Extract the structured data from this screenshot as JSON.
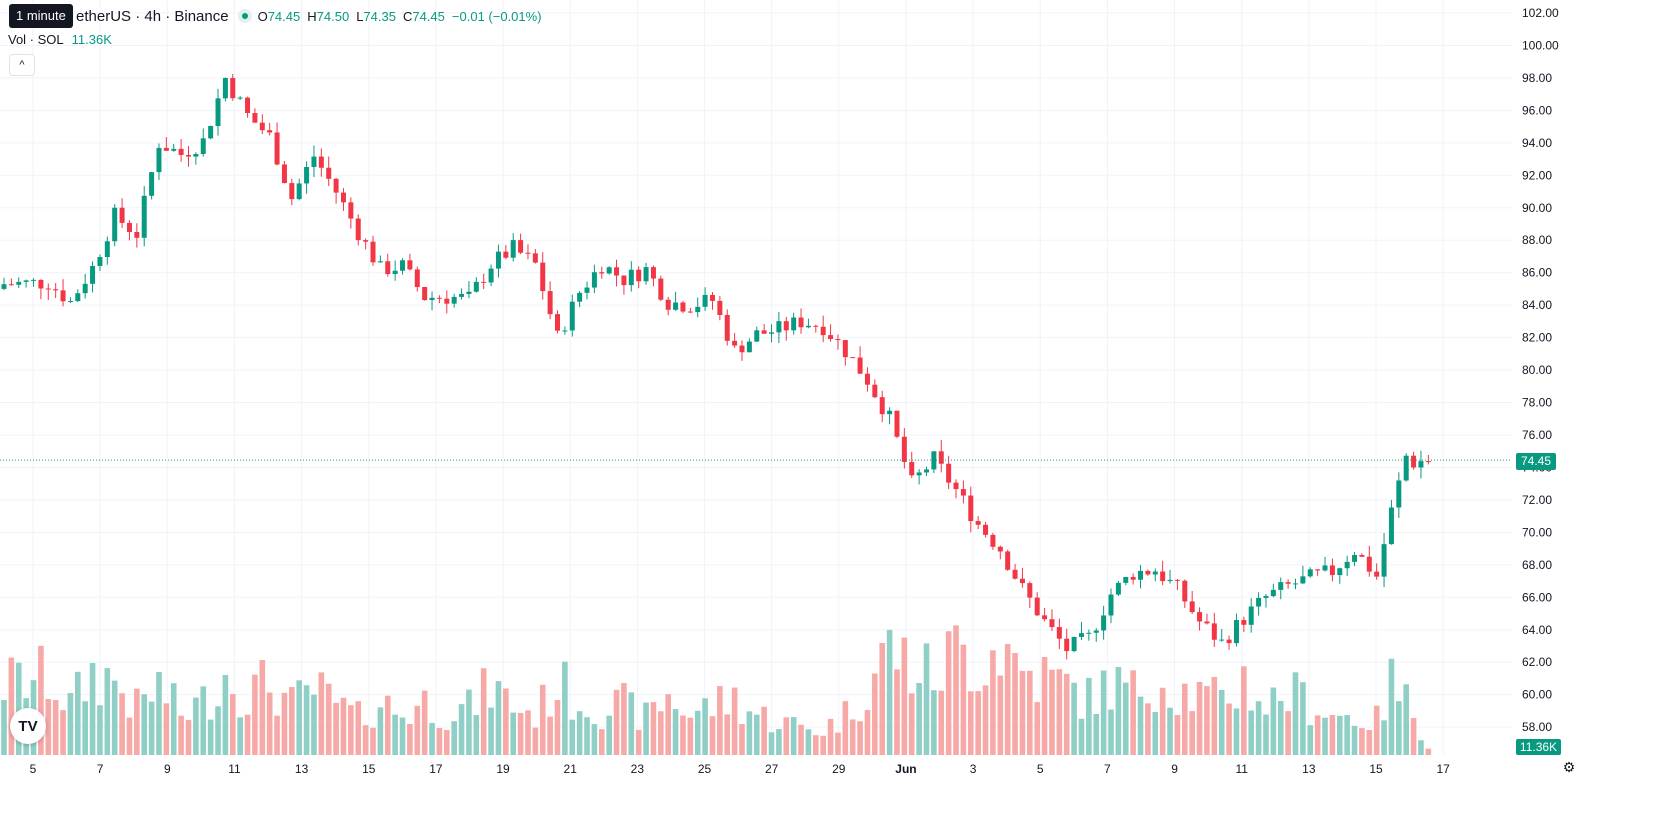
{
  "tooltip": "1 minute",
  "legend": {
    "symbol": "etherUS · 4h · Binance",
    "o_key": "O",
    "o_val": "74.45",
    "h_key": "H",
    "h_val": "74.50",
    "l_key": "L",
    "l_val": "74.35",
    "c_key": "C",
    "c_val": "74.45",
    "change": "−0.01 (−0.01%)"
  },
  "volume_legend": {
    "label": "Vol · SOL",
    "value": "11.36K"
  },
  "collapse_icon": "chevron-up-icon",
  "last_price": "74.45",
  "last_volume": "11.36K",
  "colors": {
    "up": "#089981",
    "down": "#f23645",
    "vol_up": "#8fcfc5",
    "vol_down": "#f7a9a7",
    "grid": "#f0f3fa",
    "axis_text": "#131722"
  },
  "logo_icon": "tradingview-logo-icon",
  "settings_icon": "gear-icon",
  "chart_data": {
    "type": "candlestick",
    "price_axis": [
      "102.00",
      "100.00",
      "98.00",
      "96.00",
      "94.00",
      "92.00",
      "90.00",
      "88.00",
      "86.00",
      "84.00",
      "82.00",
      "80.00",
      "78.00",
      "76.00",
      "74.00",
      "72.00",
      "70.00",
      "68.00",
      "66.00",
      "64.00",
      "62.00",
      "60.00",
      "58.00"
    ],
    "time_axis": [
      "5",
      "7",
      "9",
      "11",
      "13",
      "15",
      "17",
      "19",
      "21",
      "23",
      "25",
      "27",
      "29",
      "Jun",
      "3",
      "5",
      "7",
      "9",
      "11",
      "13",
      "15",
      "17"
    ],
    "ylim": [
      56.9,
      102.8
    ],
    "grid": true,
    "close_path": [
      [
        0,
        85.3
      ],
      [
        6,
        85.4
      ],
      [
        9,
        84.2
      ],
      [
        12,
        86.3
      ],
      [
        15,
        89.5
      ],
      [
        18,
        88.4
      ],
      [
        21,
        94.0
      ],
      [
        24,
        93.3
      ],
      [
        27,
        94.1
      ],
      [
        30,
        98.0
      ],
      [
        33,
        95.7
      ],
      [
        36,
        94.4
      ],
      [
        39,
        90.6
      ],
      [
        42,
        93.2
      ],
      [
        45,
        91.0
      ],
      [
        48,
        88.5
      ],
      [
        51,
        86.2
      ],
      [
        54,
        86.4
      ],
      [
        57,
        84.5
      ],
      [
        60,
        84.5
      ],
      [
        63,
        84.4
      ],
      [
        66,
        86.5
      ],
      [
        69,
        87.5
      ],
      [
        72,
        86.5
      ],
      [
        75,
        82.0
      ],
      [
        78,
        84.8
      ],
      [
        81,
        86.5
      ],
      [
        84,
        85.6
      ],
      [
        87,
        86.2
      ],
      [
        90,
        84.2
      ],
      [
        93,
        84.0
      ],
      [
        96,
        84.3
      ],
      [
        99,
        81.2
      ],
      [
        102,
        82.2
      ],
      [
        105,
        82.5
      ],
      [
        108,
        83.0
      ],
      [
        111,
        82.7
      ],
      [
        114,
        81.2
      ],
      [
        117,
        79.4
      ],
      [
        120,
        77.0
      ],
      [
        123,
        73.0
      ],
      [
        126,
        74.5
      ],
      [
        129,
        72.6
      ],
      [
        132,
        70.5
      ],
      [
        135,
        69.0
      ],
      [
        138,
        66.5
      ],
      [
        141,
        64.5
      ],
      [
        144,
        62.8
      ],
      [
        147,
        63.5
      ],
      [
        150,
        66.2
      ],
      [
        153,
        67.5
      ],
      [
        156,
        67.7
      ],
      [
        159,
        66.5
      ],
      [
        162,
        64.5
      ],
      [
        165,
        63.2
      ],
      [
        168,
        64.7
      ],
      [
        171,
        66.0
      ],
      [
        174,
        66.7
      ],
      [
        177,
        67.2
      ],
      [
        180,
        67.6
      ],
      [
        183,
        68.9
      ],
      [
        186,
        67.3
      ],
      [
        188,
        71.3
      ],
      [
        190,
        74.7
      ],
      [
        191,
        74.3
      ],
      [
        193,
        74.45
      ]
    ],
    "volume_path": [
      [
        0,
        2.3
      ],
      [
        6,
        2.5
      ],
      [
        9,
        1.6
      ],
      [
        12,
        2.6
      ],
      [
        15,
        2.4
      ],
      [
        18,
        1.5
      ],
      [
        21,
        2.2
      ],
      [
        24,
        1.3
      ],
      [
        27,
        1.7
      ],
      [
        30,
        2.6
      ],
      [
        33,
        2.0
      ],
      [
        36,
        2.3
      ],
      [
        39,
        1.6
      ],
      [
        42,
        2.1
      ],
      [
        45,
        1.6
      ],
      [
        48,
        1.2
      ],
      [
        51,
        1.7
      ],
      [
        54,
        1.3
      ],
      [
        57,
        1.7
      ],
      [
        60,
        1.4
      ],
      [
        63,
        1.5
      ],
      [
        66,
        2.2
      ],
      [
        69,
        1.6
      ],
      [
        72,
        1.3
      ],
      [
        75,
        2.3
      ],
      [
        78,
        1.7
      ],
      [
        81,
        1.5
      ],
      [
        84,
        1.6
      ],
      [
        87,
        1.2
      ],
      [
        90,
        1.9
      ],
      [
        93,
        1.3
      ],
      [
        96,
        1.6
      ],
      [
        99,
        1.8
      ],
      [
        102,
        1.3
      ],
      [
        105,
        1.1
      ],
      [
        108,
        0.9
      ],
      [
        111,
        0.8
      ],
      [
        114,
        1.3
      ],
      [
        117,
        2.2
      ],
      [
        120,
        3.5
      ],
      [
        123,
        2.8
      ],
      [
        126,
        2.5
      ],
      [
        129,
        3.4
      ],
      [
        132,
        3.0
      ],
      [
        135,
        3.6
      ],
      [
        138,
        2.7
      ],
      [
        141,
        2.5
      ],
      [
        144,
        2.2
      ],
      [
        147,
        1.8
      ],
      [
        150,
        2.3
      ],
      [
        153,
        2.0
      ],
      [
        156,
        2.5
      ],
      [
        159,
        2.1
      ],
      [
        162,
        1.9
      ],
      [
        165,
        1.7
      ],
      [
        168,
        2.4
      ],
      [
        171,
        1.6
      ],
      [
        174,
        2.0
      ],
      [
        177,
        1.7
      ],
      [
        180,
        1.3
      ],
      [
        183,
        1.2
      ],
      [
        186,
        1.1
      ],
      [
        188,
        2.3
      ],
      [
        190,
        1.7
      ],
      [
        191,
        1.4
      ],
      [
        193,
        0.3
      ]
    ],
    "volume_ylim": [
      0,
      4.5
    ]
  }
}
